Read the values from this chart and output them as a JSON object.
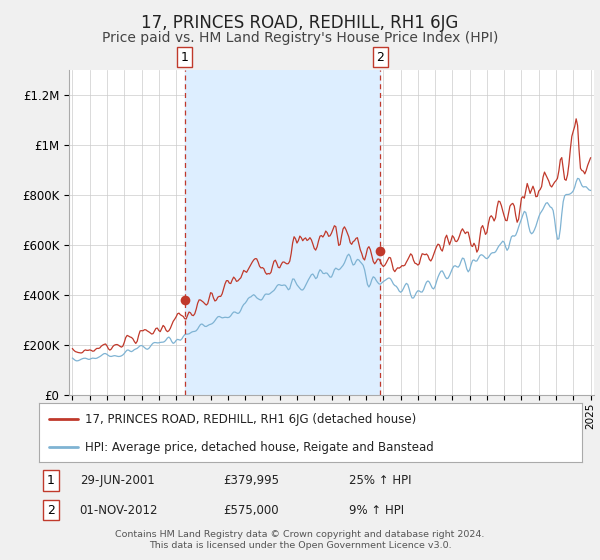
{
  "title": "17, PRINCES ROAD, REDHILL, RH1 6JG",
  "subtitle": "Price paid vs. HM Land Registry's House Price Index (HPI)",
  "title_fontsize": 12,
  "subtitle_fontsize": 10,
  "x_start_year": 1995,
  "x_end_year": 2025,
  "ylim": [
    0,
    1300000
  ],
  "yticks": [
    0,
    200000,
    400000,
    600000,
    800000,
    1000000,
    1200000
  ],
  "ytick_labels": [
    "£0",
    "£200K",
    "£400K",
    "£600K",
    "£800K",
    "£1M",
    "£1.2M"
  ],
  "hpi_color": "#7fb3d3",
  "price_color": "#c0392b",
  "shading_color": "#ddeeff",
  "vline_color": "#c0392b",
  "bg_color": "#f0f0f0",
  "plot_bg_color": "#ffffff",
  "grid_color": "#cccccc",
  "sale1_year": 2001.5,
  "sale1_price": 379995,
  "sale1_label": "1",
  "sale1_date": "29-JUN-2001",
  "sale1_hpi_pct": "25% ↑ HPI",
  "sale2_year": 2012.83,
  "sale2_price": 575000,
  "sale2_label": "2",
  "sale2_date": "01-NOV-2012",
  "sale2_hpi_pct": "9% ↑ HPI",
  "legend_line1": "17, PRINCES ROAD, REDHILL, RH1 6JG (detached house)",
  "legend_line2": "HPI: Average price, detached house, Reigate and Banstead",
  "footer1": "Contains HM Land Registry data © Crown copyright and database right 2024.",
  "footer2": "This data is licensed under the Open Government Licence v3.0.",
  "sale1_box_label": "1",
  "sale2_box_label": "2",
  "hpi_waypoints_months": [
    0,
    12,
    24,
    36,
    48,
    60,
    72,
    84,
    96,
    108,
    120,
    132,
    144,
    156,
    168,
    180,
    192,
    204,
    216,
    228,
    240,
    252,
    264,
    276,
    288,
    300,
    312,
    324,
    336,
    348,
    360
  ],
  "hpi_waypoints_vals": [
    140000,
    148000,
    157000,
    168000,
    185000,
    200000,
    220000,
    250000,
    285000,
    320000,
    360000,
    395000,
    420000,
    440000,
    460000,
    480000,
    510000,
    500000,
    440000,
    420000,
    430000,
    455000,
    490000,
    520000,
    560000,
    600000,
    650000,
    700000,
    760000,
    820000,
    870000
  ],
  "price_waypoints_months": [
    0,
    12,
    24,
    36,
    48,
    60,
    72,
    84,
    96,
    108,
    120,
    132,
    144,
    156,
    168,
    180,
    192,
    204,
    216,
    228,
    240,
    252,
    264,
    276,
    288,
    300,
    312,
    324,
    336,
    348,
    360
  ],
  "price_waypoints_vals": [
    170000,
    180000,
    195000,
    215000,
    240000,
    265000,
    295000,
    330000,
    375000,
    430000,
    490000,
    530000,
    560000,
    590000,
    620000,
    645000,
    640000,
    580000,
    530000,
    510000,
    540000,
    580000,
    610000,
    640000,
    680000,
    720000,
    780000,
    840000,
    910000,
    970000,
    940000
  ]
}
